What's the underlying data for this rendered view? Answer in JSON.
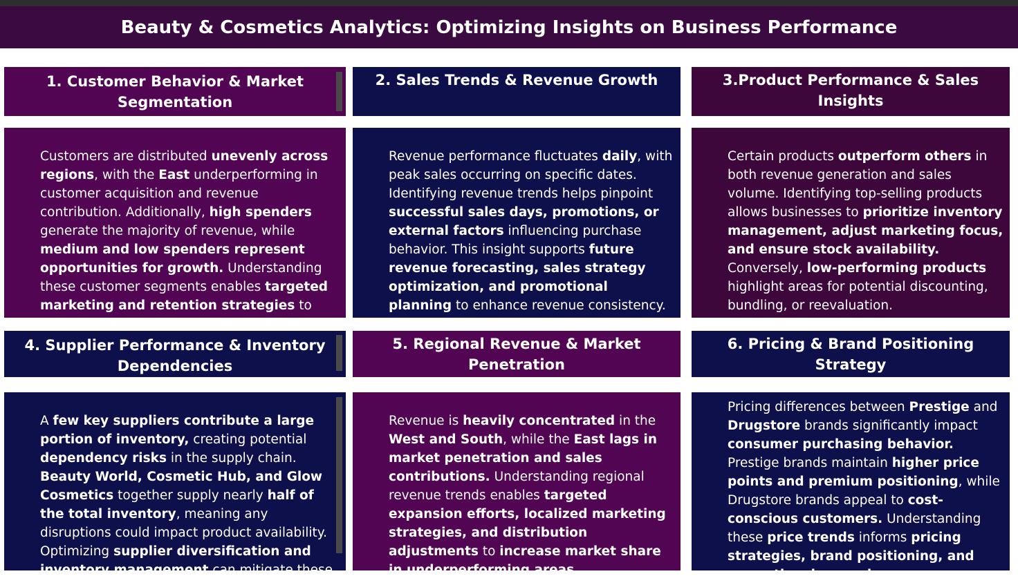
{
  "title": "Beauty & Cosmetics Analytics: Optimizing Insights on Business Performance",
  "cards": [
    {
      "heading": "1.  Customer Behavior & Market Segmentation",
      "body_html": "Customers are distributed <b>unevenly across regions</b>, with the <b>East</b> underperforming in customer acquisition and revenue contribution. Additionally, <b>high spenders</b> generate the majority of revenue, while <b>medium and low spenders represent opportunities for growth.</b> Understanding these customer segments enables <b>targeted marketing and retention strategies</b> to increase profitability"
    },
    {
      "heading": "2.  Sales Trends & Revenue Growth",
      "body_html": "Revenue performance fluctuates <b>daily</b>, with peak sales occurring on specific dates. Identifying revenue trends helps pinpoint <b>successful sales days, promotions, or external factors</b> influencing purchase behavior. This insight supports <b>future revenue forecasting, sales strategy optimization, and promotional planning</b> to enhance revenue consistency."
    },
    {
      "heading": "3.Product Performance & Sales Insights",
      "body_html": "Certain products <b>outperform others</b> in both revenue generation and sales volume. Identifying top-selling products allows businesses to <b>prioritize inventory management, adjust marketing focus, and ensure stock availability.</b> Conversely, <b>low-performing products</b> highlight areas for potential discounting, bundling, or reevaluation."
    },
    {
      "heading": "4.  Supplier Performance & Inventory Dependencies",
      "body_html": "A <b>few key suppliers contribute a large portion of inventory,</b> creating potential <b>dependency risks</b> in the supply chain. <b>Beauty World, Cosmetic Hub, and Glow Cosmetics</b> together supply nearly <b>half of the total inventory</b>, meaning any disruptions could impact product availability. Optimizing <b>supplier diversification and inventory management</b> can mitigate these risks."
    },
    {
      "heading": "5.  Regional Revenue & Market Penetration",
      "body_html": "Revenue is <b>heavily concentrated</b> in the <b>West and South</b>, while the <b>East lags in market penetration and sales contributions.</b> Understanding regional revenue trends enables <b>targeted expansion efforts, localized marketing strategies, and distribution adjustments</b> to <b>increase market share in underperforming areas.</b>"
    },
    {
      "heading": "6.  Pricing & Brand Positioning Strategy",
      "body_html": "Pricing differences between <b>Prestige</b> and <b>Drugstore</b> brands significantly impact <b>consumer purchasing behavior.</b> Prestige brands maintain <b>higher price points and premium positioning</b>, while Drugstore brands appeal to <b>cost-conscious customers.</b> Understanding these <b>price trends</b> informs <b>pricing strategies, brand positioning, and promotional campaigns.</b>"
    }
  ],
  "colors": {
    "purple": "#520552",
    "navy": "#0d104a",
    "plum": "#3d073b",
    "banner": "#3a0a40"
  }
}
